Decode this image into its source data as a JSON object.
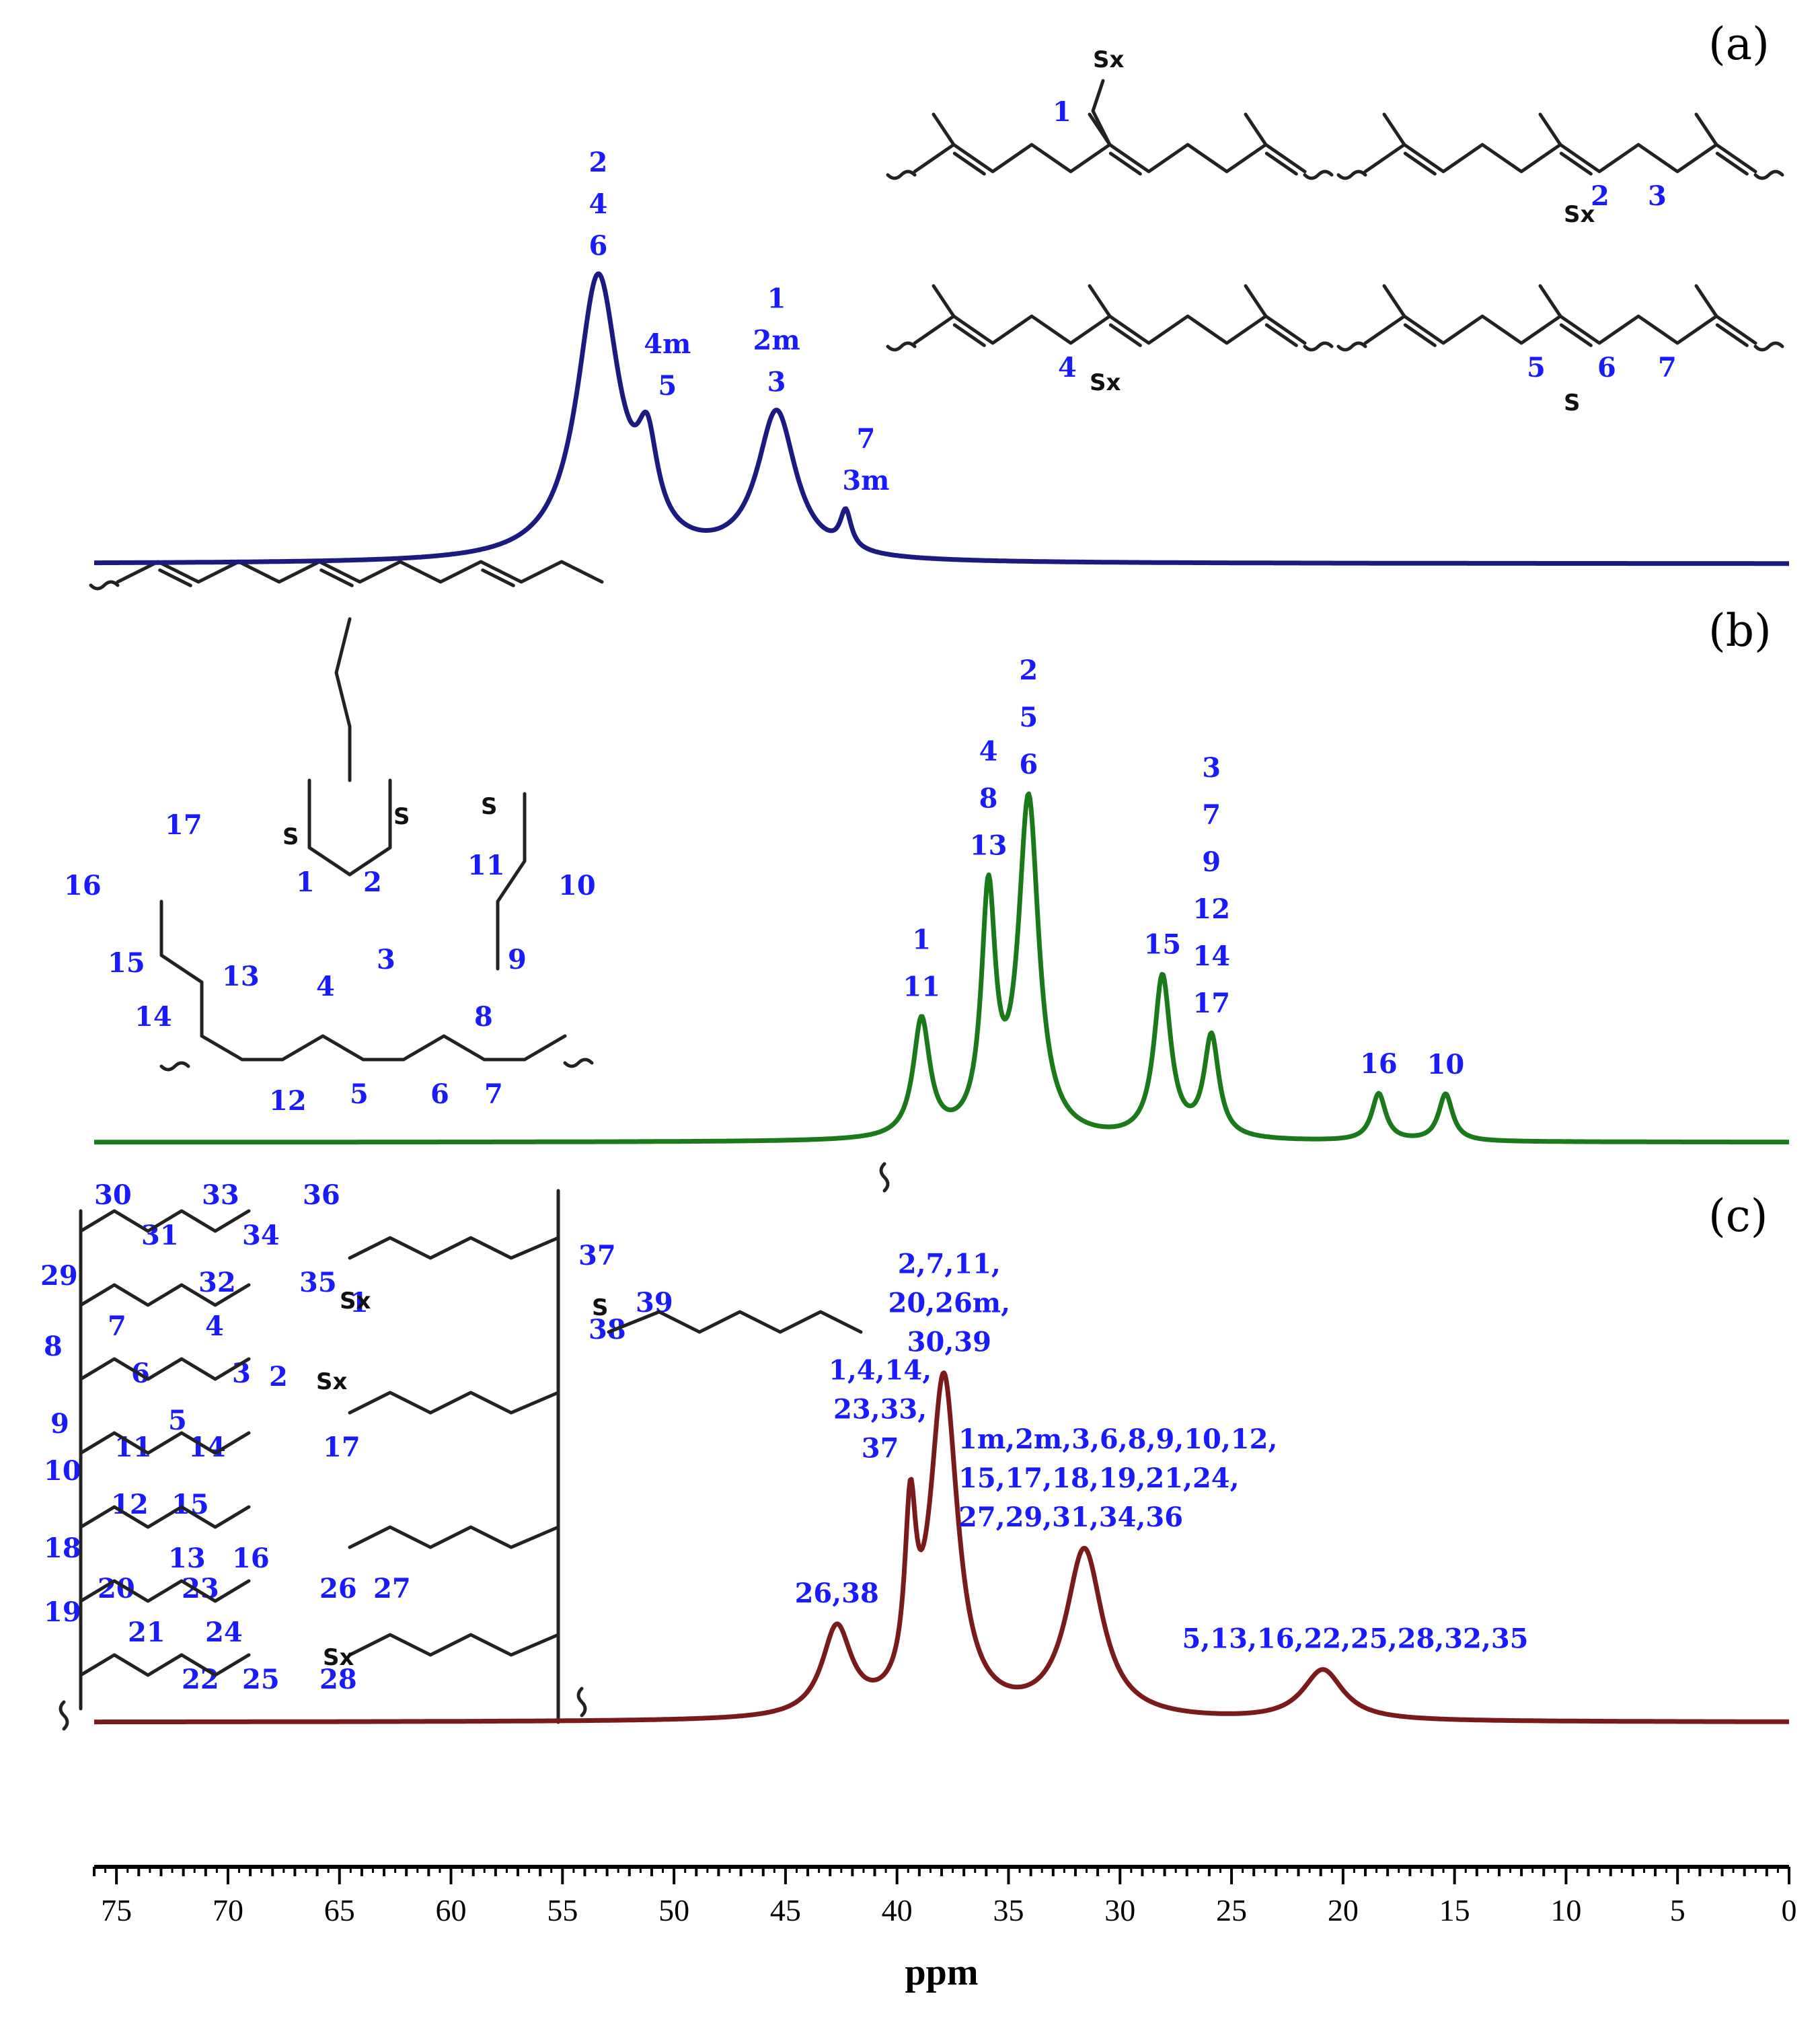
{
  "chart_data": {
    "type": "line",
    "xlabel": "ppm",
    "xlim": [
      76,
      0
    ],
    "x_ticks": [
      75,
      70,
      65,
      60,
      55,
      50,
      45,
      40,
      35,
      30,
      25,
      20,
      15,
      10,
      5,
      0
    ],
    "panels": [
      {
        "label": "(a)",
        "color": "#1a1a80",
        "peaks": [
          {
            "ppm": 53.4,
            "height": 1.0,
            "width": 1.15
          },
          {
            "ppm": 51.2,
            "height": 0.3,
            "width": 0.55
          },
          {
            "ppm": 45.4,
            "height": 0.52,
            "width": 1.05
          },
          {
            "ppm": 42.3,
            "height": 0.13,
            "width": 0.3
          }
        ],
        "annotations": [
          {
            "ppm": 53.4,
            "lines": [
              "2",
              "4",
              "6"
            ]
          },
          {
            "ppm": 51.2,
            "lines": [
              "4m",
              "5"
            ]
          },
          {
            "ppm": 45.4,
            "lines": [
              "1",
              "2m",
              "3"
            ]
          },
          {
            "ppm": 42.3,
            "lines": [
              "7",
              "3m"
            ]
          }
        ],
        "structure_labels": [
          {
            "id": "s1",
            "text": "1"
          },
          {
            "id": "s2",
            "text": "2"
          },
          {
            "id": "s3",
            "text": "3"
          },
          {
            "id": "s4",
            "text": "4"
          },
          {
            "id": "s5",
            "text": "5"
          },
          {
            "id": "s6",
            "text": "6"
          },
          {
            "id": "s7",
            "text": "7"
          }
        ],
        "atoms": [
          "Sx",
          "Sx",
          "Sx",
          "S"
        ]
      },
      {
        "label": "(b)",
        "color": "#1a7a1a",
        "peaks": [
          {
            "ppm": 38.9,
            "height": 0.35,
            "width": 0.45
          },
          {
            "ppm": 35.9,
            "height": 0.7,
            "width": 0.38
          },
          {
            "ppm": 34.1,
            "height": 1.0,
            "width": 0.55
          },
          {
            "ppm": 28.1,
            "height": 0.48,
            "width": 0.45
          },
          {
            "ppm": 25.9,
            "height": 0.3,
            "width": 0.4
          },
          {
            "ppm": 18.4,
            "height": 0.14,
            "width": 0.38
          },
          {
            "ppm": 15.4,
            "height": 0.14,
            "width": 0.38
          }
        ],
        "annotations": [
          {
            "ppm": 38.9,
            "lines": [
              "1",
              "11"
            ]
          },
          {
            "ppm": 35.9,
            "lines": [
              "4",
              "8",
              "13"
            ]
          },
          {
            "ppm": 34.1,
            "lines": [
              "2",
              "5",
              "6"
            ]
          },
          {
            "ppm": 28.1,
            "lines": [
              "15"
            ]
          },
          {
            "ppm": 25.9,
            "lines": [
              "3",
              "7",
              "9",
              "12",
              "14",
              "17"
            ]
          },
          {
            "ppm": 18.4,
            "lines": [
              "16"
            ]
          },
          {
            "ppm": 15.4,
            "lines": [
              "10"
            ]
          }
        ],
        "structure_labels": [
          "17",
          "16",
          "15",
          "14",
          "13",
          "12",
          "1",
          "2",
          "3",
          "4",
          "5",
          "6",
          "7",
          "8",
          "9",
          "10",
          "11"
        ],
        "atoms": [
          "S",
          "S",
          "S"
        ]
      },
      {
        "label": "(c)",
        "color": "#7a1a1a",
        "peaks": [
          {
            "ppm": 42.7,
            "height": 0.26,
            "width": 0.8
          },
          {
            "ppm": 39.4,
            "height": 0.5,
            "width": 0.3
          },
          {
            "ppm": 37.9,
            "height": 1.0,
            "width": 0.75
          },
          {
            "ppm": 31.6,
            "height": 0.5,
            "width": 1.0
          },
          {
            "ppm": 20.9,
            "height": 0.15,
            "width": 1.1
          }
        ],
        "annotations": [
          {
            "ppm": 42.7,
            "lines": [
              "26,38"
            ]
          },
          {
            "ppm": 39.4,
            "lines": [
              "1,4,14,",
              "23,33,",
              "37"
            ]
          },
          {
            "ppm": 37.9,
            "lines": [
              "2,7,11,",
              "20,26m,",
              "30,39"
            ]
          },
          {
            "ppm": 31.6,
            "lines": [
              "1m,2m,3,6,8,9,10,12,",
              "15,17,18,19,21,24,",
              "27,29,31,34,36"
            ]
          },
          {
            "ppm": 20.9,
            "lines": [
              "5,13,16,22,25,28,32,35"
            ]
          }
        ],
        "structure_labels": [
          "30",
          "33",
          "36",
          "31",
          "34",
          "29",
          "32",
          "35",
          "1",
          "7",
          "4",
          "8",
          "6",
          "3",
          "2",
          "5",
          "9",
          "11",
          "14",
          "17",
          "10",
          "12",
          "15",
          "13",
          "16",
          "18",
          "20",
          "23",
          "26",
          "27",
          "19",
          "21",
          "24",
          "22",
          "25",
          "28",
          "37",
          "38",
          "39"
        ],
        "atoms": [
          "Sx",
          "Sx",
          "Sx",
          "S"
        ]
      }
    ]
  }
}
